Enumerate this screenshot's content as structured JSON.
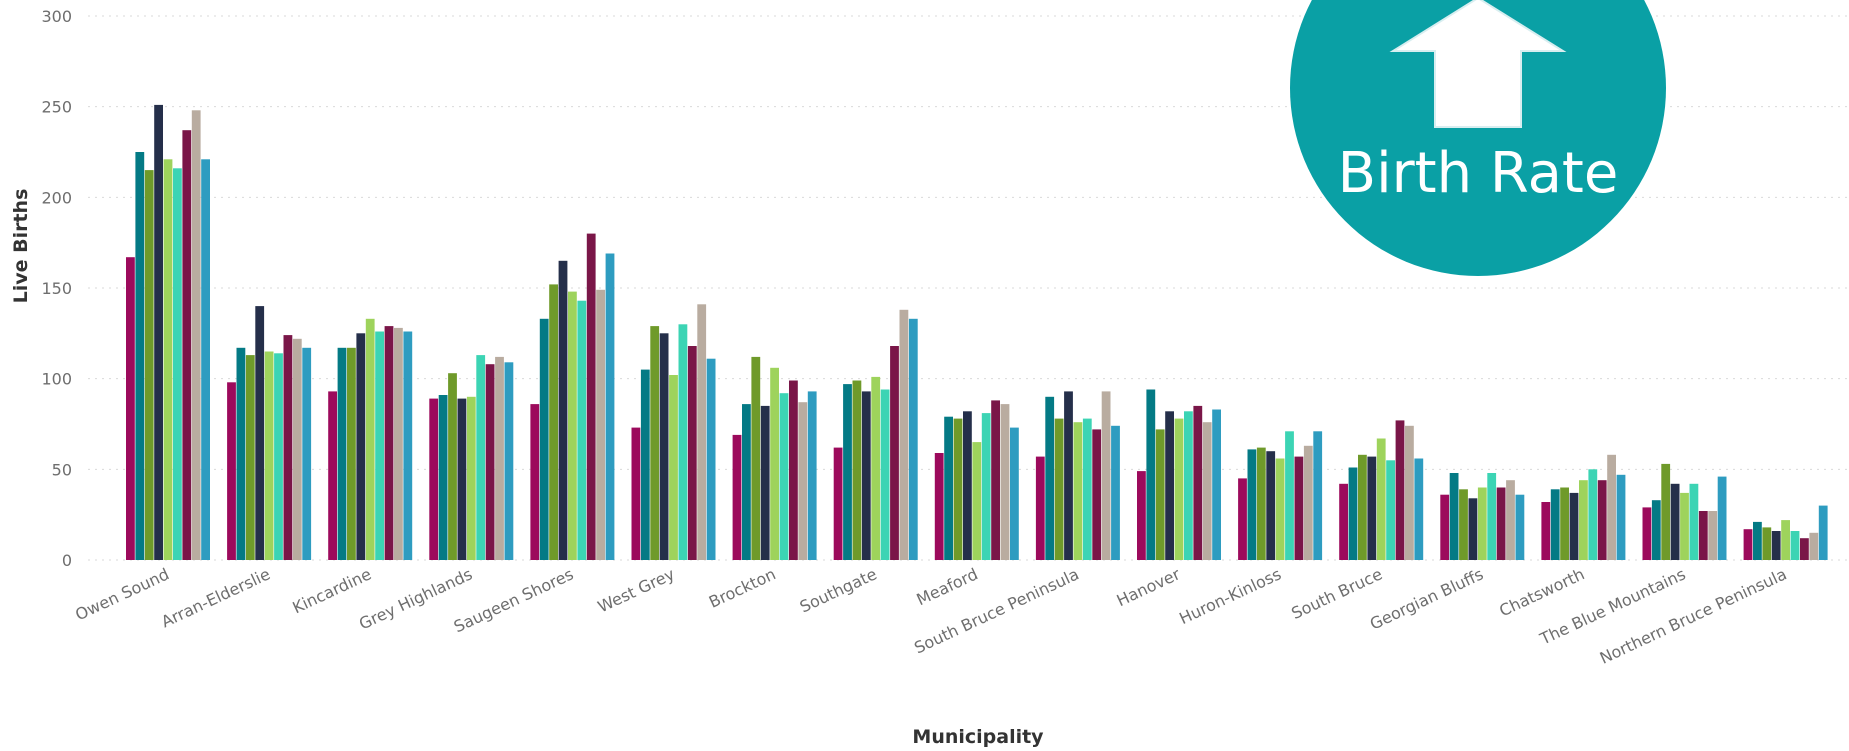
{
  "chart_data": {
    "type": "bar",
    "xlabel": "Municipality",
    "ylabel": "Live Births",
    "ylim": [
      0,
      300
    ],
    "yticks": [
      0,
      50,
      100,
      150,
      200,
      250,
      300
    ],
    "grid": true,
    "categories": [
      "Owen Sound",
      "Arran-Elderslie",
      "Kincardine",
      "Grey Highlands",
      "Saugeen Shores",
      "West Grey",
      "Brockton",
      "Southgate",
      "Meaford",
      "South Bruce Peninsula",
      "Hanover",
      "Huron-Kinloss",
      "South Bruce",
      "Georgian Bluffs",
      "Chatsworth",
      "The Blue Mountains",
      "Northern Bruce Peninsula"
    ],
    "series": [
      {
        "color": "#9c0a5c",
        "values": [
          167,
          98,
          93,
          89,
          86,
          73,
          69,
          62,
          59,
          57,
          49,
          45,
          42,
          36,
          32,
          29,
          17
        ]
      },
      {
        "color": "#047a85",
        "values": [
          225,
          117,
          117,
          91,
          133,
          105,
          86,
          97,
          79,
          90,
          94,
          61,
          51,
          48,
          39,
          33,
          21
        ]
      },
      {
        "color": "#6f9a2a",
        "values": [
          215,
          113,
          117,
          103,
          152,
          129,
          112,
          99,
          78,
          78,
          72,
          62,
          58,
          39,
          40,
          53,
          18
        ]
      },
      {
        "color": "#252f4a",
        "values": [
          251,
          140,
          125,
          89,
          165,
          125,
          85,
          93,
          82,
          93,
          82,
          60,
          57,
          34,
          37,
          42,
          16
        ]
      },
      {
        "color": "#9ed35c",
        "values": [
          221,
          115,
          133,
          90,
          148,
          102,
          106,
          101,
          65,
          76,
          78,
          56,
          67,
          40,
          44,
          37,
          22
        ]
      },
      {
        "color": "#3cd4b4",
        "values": [
          216,
          114,
          126,
          113,
          143,
          130,
          92,
          94,
          81,
          78,
          82,
          71,
          55,
          48,
          50,
          42,
          16
        ]
      },
      {
        "color": "#7a1648",
        "values": [
          237,
          124,
          129,
          108,
          180,
          118,
          99,
          118,
          88,
          72,
          85,
          57,
          77,
          40,
          44,
          27,
          12
        ]
      },
      {
        "color": "#b9aca0",
        "values": [
          248,
          122,
          128,
          112,
          149,
          141,
          87,
          138,
          86,
          93,
          76,
          63,
          74,
          44,
          58,
          27,
          15
        ]
      },
      {
        "color": "#2e9cc0",
        "values": [
          221,
          117,
          126,
          109,
          169,
          111,
          93,
          133,
          73,
          74,
          83,
          71,
          56,
          36,
          47,
          46,
          30
        ]
      }
    ]
  },
  "badge": {
    "label": "Birth Rate",
    "color": "#0aa0a5"
  }
}
